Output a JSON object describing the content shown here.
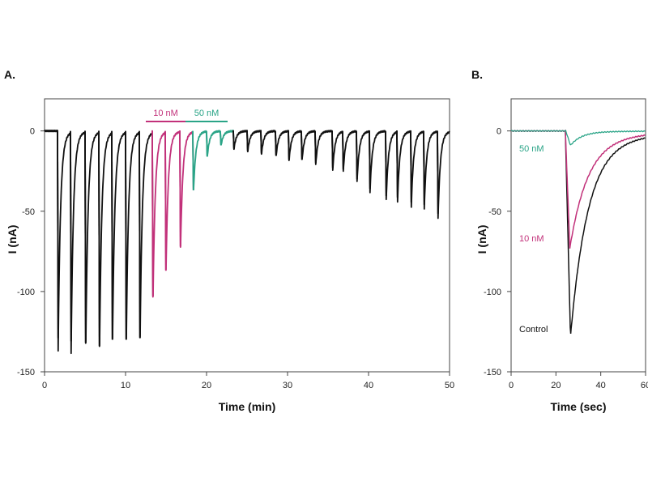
{
  "chart_data": [
    {
      "panel_label": "A.",
      "type": "line",
      "xlabel": "Time (min)",
      "ylabel": "I (nA)",
      "xlim": [
        0,
        50
      ],
      "ylim": [
        -150,
        20
      ],
      "xticks": [
        0,
        10,
        20,
        30,
        40,
        50
      ],
      "yticks": [
        0,
        -50,
        -100,
        -150
      ],
      "grid": false,
      "colors": {
        "control": "#111111",
        "10 nM": "#c2317a",
        "50 nM": "#2aa487"
      },
      "annotations": [
        {
          "label": "10 nM",
          "condition": "10 nM",
          "x_range": [
            12.5,
            17.4
          ]
        },
        {
          "label": "50 nM",
          "condition": "50 nM",
          "x_range": [
            17.4,
            22.6
          ]
        }
      ],
      "events": [
        {
          "t": 1.6,
          "peak": -129,
          "condition": "control"
        },
        {
          "t": 3.2,
          "peak": -131,
          "condition": "control"
        },
        {
          "t": 5.0,
          "peak": -132,
          "condition": "control"
        },
        {
          "t": 6.7,
          "peak": -134,
          "condition": "control"
        },
        {
          "t": 8.3,
          "peak": -130,
          "condition": "control"
        },
        {
          "t": 10.0,
          "peak": -130,
          "condition": "control"
        },
        {
          "t": 11.7,
          "peak": -129,
          "condition": "control"
        },
        {
          "t": 13.3,
          "peak": -103,
          "condition": "10 nM"
        },
        {
          "t": 14.9,
          "peak": -87,
          "condition": "10 nM"
        },
        {
          "t": 16.7,
          "peak": -72,
          "condition": "10 nM"
        },
        {
          "t": 18.3,
          "peak": -37,
          "condition": "50 nM"
        },
        {
          "t": 20.0,
          "peak": -16,
          "condition": "50 nM"
        },
        {
          "t": 21.7,
          "peak": -9,
          "condition": "50 nM"
        },
        {
          "t": 23.3,
          "peak": -11,
          "condition": "control"
        },
        {
          "t": 25.0,
          "peak": -12.5,
          "condition": "control"
        },
        {
          "t": 26.7,
          "peak": -14,
          "condition": "control"
        },
        {
          "t": 28.5,
          "peak": -15.5,
          "condition": "control"
        },
        {
          "t": 30.1,
          "peak": -18,
          "condition": "control"
        },
        {
          "t": 31.7,
          "peak": -18,
          "condition": "control"
        },
        {
          "t": 33.4,
          "peak": -20,
          "condition": "control"
        },
        {
          "t": 35.5,
          "peak": -23,
          "condition": "control"
        },
        {
          "t": 36.8,
          "peak": -24,
          "condition": "control"
        },
        {
          "t": 38.5,
          "peak": -30,
          "condition": "control"
        },
        {
          "t": 40.1,
          "peak": -36,
          "condition": "control"
        },
        {
          "t": 42.1,
          "peak": -40.5,
          "condition": "control"
        },
        {
          "t": 43.5,
          "peak": -41.5,
          "condition": "control"
        },
        {
          "t": 45.2,
          "peak": -44.5,
          "condition": "control"
        },
        {
          "t": 46.8,
          "peak": -46,
          "condition": "control"
        },
        {
          "t": 48.5,
          "peak": -51.5,
          "condition": "control"
        }
      ]
    },
    {
      "panel_label": "B.",
      "type": "line",
      "xlabel": "Time (sec)",
      "ylabel": "I (nA)",
      "xlim": [
        0,
        60
      ],
      "ylim": [
        -150,
        20
      ],
      "xticks": [
        0,
        20,
        40,
        60
      ],
      "yticks": [
        0,
        -50,
        -100,
        -150
      ],
      "grid": false,
      "series": [
        {
          "name": "Control",
          "color": "#111111",
          "onset": 24.2,
          "peak_time": 26.5,
          "peak": -128,
          "decay_tau_sec": 7.8
        },
        {
          "name": "10 nM",
          "color": "#c2317a",
          "onset": 24.2,
          "peak_time": 26.2,
          "peak": -73,
          "decay_tau_sec": 8.2
        },
        {
          "name": "50 nM",
          "color": "#2aa487",
          "onset": 24.4,
          "peak_time": 26.5,
          "peak": -9,
          "decay_tau_sec": 5
        }
      ]
    }
  ]
}
